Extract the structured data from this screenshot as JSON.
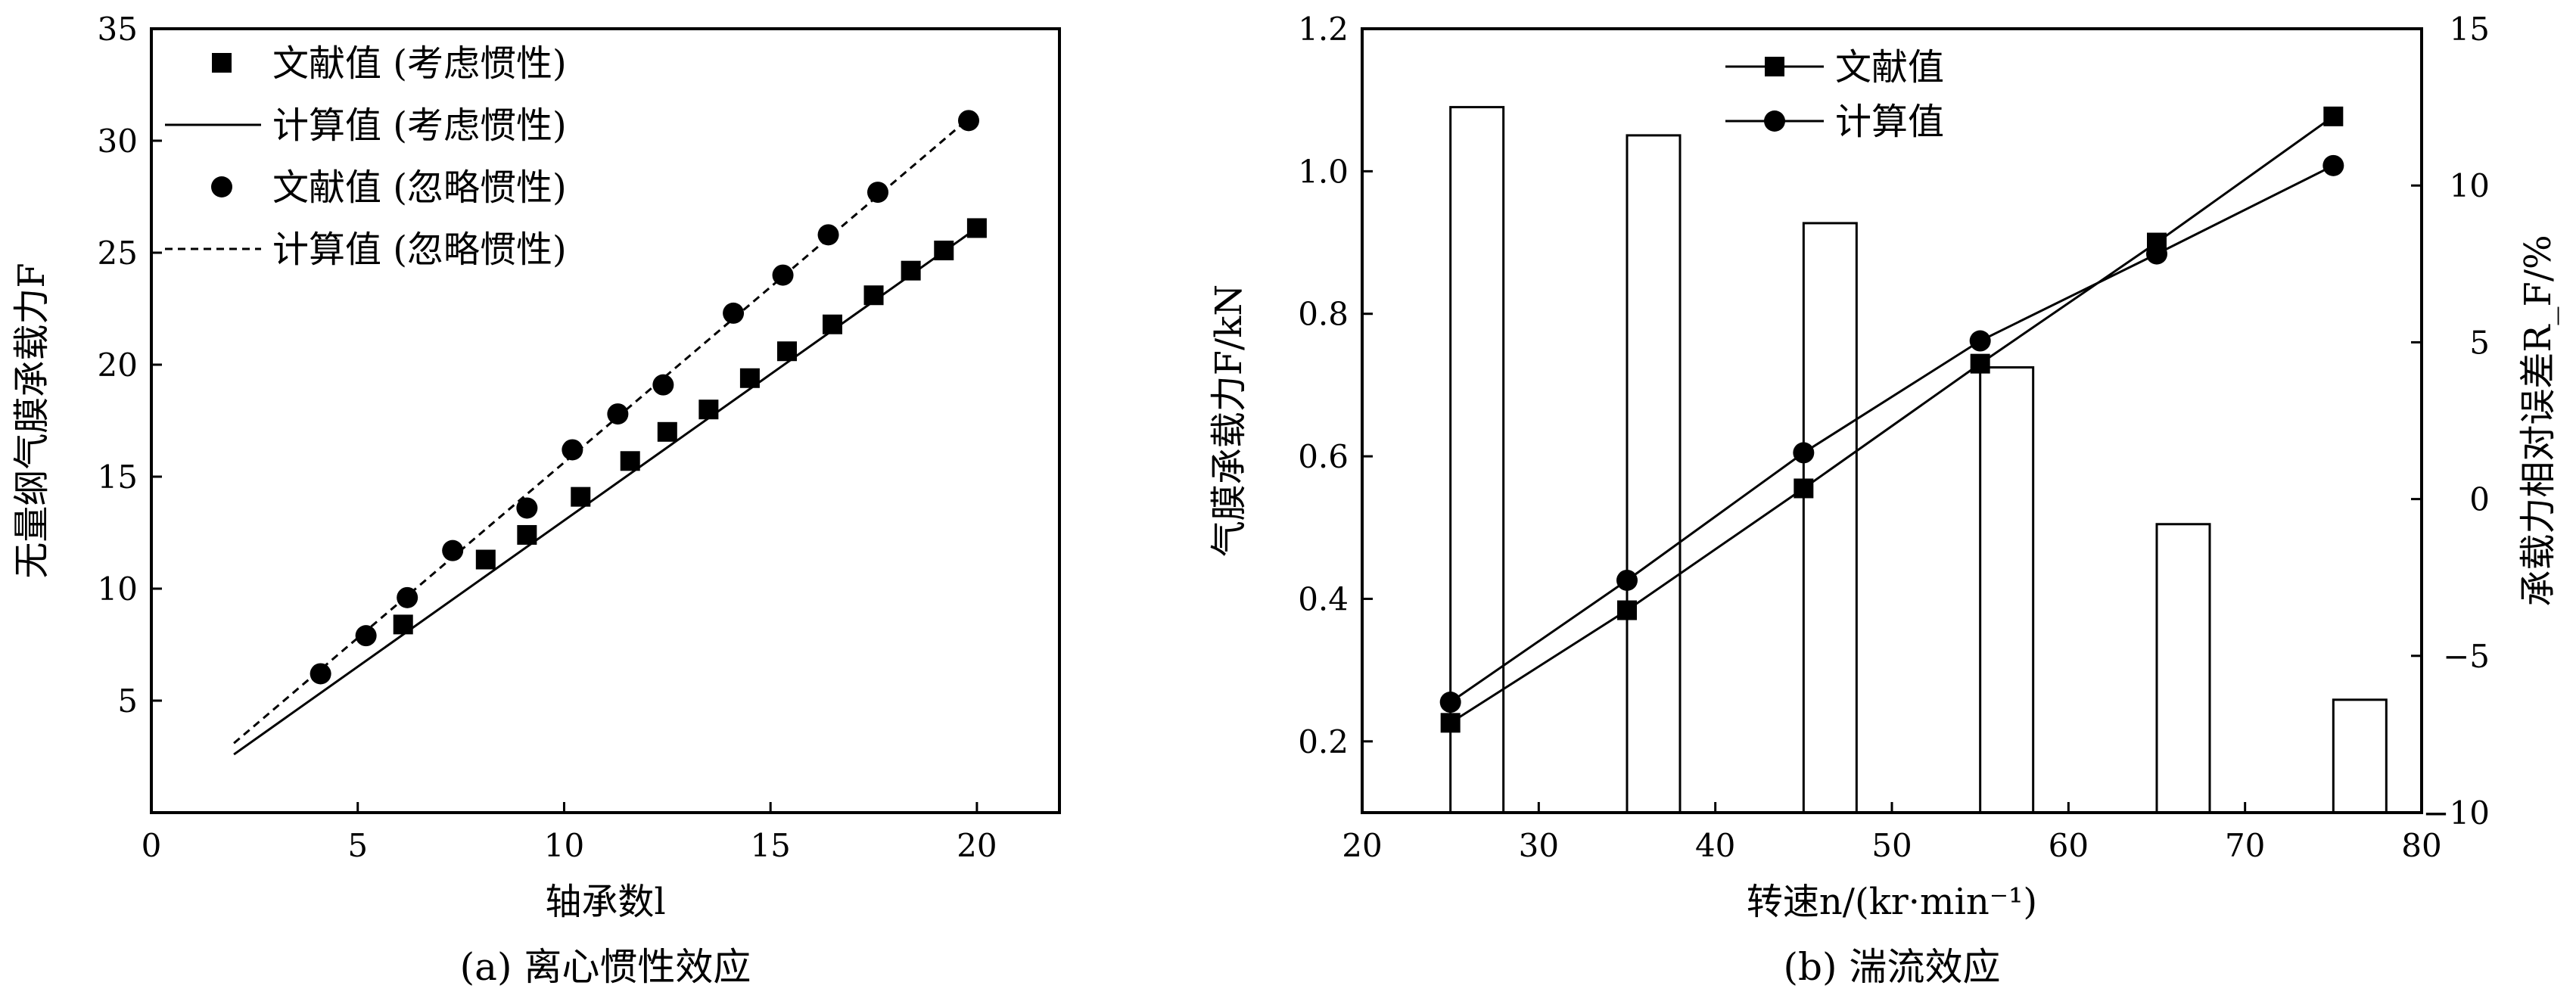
{
  "chart_data": [
    {
      "type": "scatter",
      "caption": "(a) 离心惯性效应",
      "xlabel": "轴承数l",
      "ylabel": "无量纲气膜承载力F",
      "xlim": [
        0,
        22
      ],
      "ylim": [
        0,
        35
      ],
      "x_ticks": [
        0,
        5,
        10,
        15,
        20
      ],
      "x_tick_labels": [
        "0",
        "5",
        "10",
        "15",
        "20"
      ],
      "y_ticks": [
        5,
        10,
        15,
        20,
        25,
        30,
        35
      ],
      "y_tick_labels": [
        "5",
        "10",
        "15",
        "20",
        "25",
        "30",
        "35"
      ],
      "legend_position": "top-left",
      "series": [
        {
          "name": "文献值 (考虑惯性)",
          "style": "square-markers",
          "x": [
            6.1,
            8.1,
            9.1,
            10.4,
            11.6,
            12.5,
            13.5,
            14.5,
            15.4,
            16.5,
            17.5,
            18.4,
            19.2,
            20.0
          ],
          "y": [
            8.4,
            11.3,
            12.4,
            14.1,
            15.7,
            17.0,
            18.0,
            19.4,
            20.6,
            21.8,
            23.1,
            24.2,
            25.1,
            26.1
          ]
        },
        {
          "name": "计算值 (考虑惯性)",
          "style": "solid-line",
          "x": [
            2.0,
            20.0
          ],
          "y": [
            2.6,
            26.1
          ]
        },
        {
          "name": "文献值 (忽略惯性)",
          "style": "circle-markers",
          "x": [
            4.1,
            5.2,
            6.2,
            7.3,
            9.1,
            10.2,
            11.3,
            12.4,
            14.1,
            15.3,
            16.4,
            17.6,
            19.8
          ],
          "y": [
            6.2,
            7.9,
            9.6,
            11.7,
            13.6,
            16.2,
            17.8,
            19.1,
            22.3,
            24.0,
            25.8,
            27.7,
            30.9
          ]
        },
        {
          "name": "计算值 (忽略惯性)",
          "style": "dashed-line",
          "x": [
            2.0,
            20.0
          ],
          "y": [
            3.1,
            31.3
          ]
        }
      ]
    },
    {
      "type": "bar+line",
      "caption": "(b) 湍流效应",
      "xlabel": "转速n/(kr·min⁻¹)",
      "ylabel": "气膜承载力F/kN",
      "y2label": "承载力相对误差R_F/%",
      "xlim": [
        20,
        80
      ],
      "ylim": [
        0.1,
        1.2
      ],
      "y2lim": [
        -10,
        15
      ],
      "x_ticks": [
        20,
        30,
        40,
        50,
        60,
        70,
        80
      ],
      "x_tick_labels": [
        "20",
        "30",
        "40",
        "50",
        "60",
        "70",
        "80"
      ],
      "y_ticks": [
        0.2,
        0.4,
        0.6,
        0.8,
        1.0,
        1.2
      ],
      "y_tick_labels": [
        "0.2",
        "0.4",
        "0.6",
        "0.8",
        "1.0",
        "1.2"
      ],
      "y2_ticks": [
        -10,
        -5,
        0,
        5,
        10,
        15
      ],
      "y2_tick_labels": [
        "−10",
        "−5",
        "0",
        "5",
        "10",
        "15"
      ],
      "legend_position": "top-left",
      "bars": {
        "name": "承载力相对误差",
        "x": [
          25,
          35,
          45,
          55,
          65,
          75
        ],
        "values": [
          12.5,
          11.6,
          8.8,
          4.2,
          -0.8,
          -6.4
        ],
        "width": 3
      },
      "series": [
        {
          "name": "文献值",
          "style": "square-markers-line",
          "x": [
            25,
            35,
            45,
            55,
            65,
            75
          ],
          "y": [
            0.226,
            0.384,
            0.555,
            0.73,
            0.9,
            1.077
          ]
        },
        {
          "name": "计算值",
          "style": "circle-markers-line",
          "x": [
            25,
            35,
            45,
            55,
            65,
            75
          ],
          "y": [
            0.255,
            0.426,
            0.605,
            0.762,
            0.884,
            1.008
          ]
        }
      ]
    }
  ]
}
